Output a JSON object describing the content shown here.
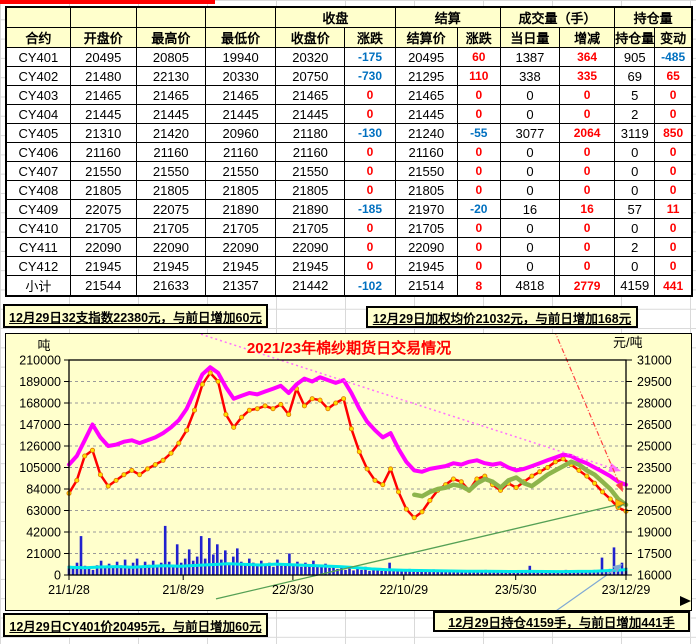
{
  "table": {
    "top_headers": [
      {
        "label": "",
        "span": 1
      },
      {
        "label": "",
        "span": 1
      },
      {
        "label": "",
        "span": 1
      },
      {
        "label": "",
        "span": 1
      },
      {
        "label": "收盘",
        "span": 2
      },
      {
        "label": "结算",
        "span": 2
      },
      {
        "label": "成交量（手）",
        "span": 2
      },
      {
        "label": "持仓量",
        "span": 2
      }
    ],
    "col_headers": [
      "合约",
      "开盘价",
      "最高价",
      "最低价",
      "收盘价",
      "涨跌",
      "结算价",
      "涨跌",
      "当日量",
      "增减",
      "持仓量",
      "变动"
    ],
    "change_cols": [
      5,
      7,
      9,
      11
    ],
    "rows": [
      [
        "CY401",
        20495,
        20805,
        19940,
        20320,
        -175,
        20495,
        60,
        1387,
        364,
        905,
        -485
      ],
      [
        "CY402",
        21480,
        22130,
        20330,
        20750,
        -730,
        21295,
        110,
        338,
        335,
        69,
        65
      ],
      [
        "CY403",
        21465,
        21465,
        21465,
        21465,
        0,
        21465,
        0,
        0,
        0,
        5,
        0
      ],
      [
        "CY404",
        21445,
        21445,
        21445,
        21445,
        0,
        21445,
        0,
        0,
        0,
        2,
        0
      ],
      [
        "CY405",
        21310,
        21420,
        20960,
        21180,
        -130,
        21240,
        -55,
        3077,
        2064,
        3119,
        850
      ],
      [
        "CY406",
        21160,
        21160,
        21160,
        21160,
        0,
        21160,
        0,
        0,
        0,
        0,
        0
      ],
      [
        "CY407",
        21550,
        21550,
        21550,
        21550,
        0,
        21550,
        0,
        0,
        0,
        0,
        0
      ],
      [
        "CY408",
        21805,
        21805,
        21805,
        21805,
        0,
        21805,
        0,
        0,
        0,
        0,
        0
      ],
      [
        "CY409",
        22075,
        22075,
        21890,
        21890,
        -185,
        21970,
        -20,
        16,
        16,
        57,
        11
      ],
      [
        "CY410",
        21705,
        21705,
        21705,
        21705,
        0,
        21705,
        0,
        0,
        0,
        0,
        0
      ],
      [
        "CY411",
        22090,
        22090,
        22090,
        22090,
        0,
        22090,
        0,
        0,
        0,
        2,
        0
      ],
      [
        "CY412",
        21945,
        21945,
        21945,
        21945,
        0,
        21945,
        0,
        0,
        0,
        0,
        0
      ],
      [
        "小计",
        21544,
        21633,
        21357,
        21442,
        -102,
        21514,
        8,
        4818,
        2779,
        4159,
        441
      ]
    ],
    "colors": {
      "positive": "#FF0000",
      "negative": "#0070C0",
      "header_bg": "#FFFFCC"
    }
  },
  "banners": {
    "index": "12月29日32支指数22380元，与前日增加60元",
    "weighted": "12月29日加权均价21032元，与前日增加168元",
    "cy401": "12月29日CY401价20495元，与前日增加60元",
    "position": "12月29日持仓4159手，与前日增加441手"
  },
  "chart_data": {
    "type": "line",
    "title": "2021/23年棉纱期货日交易情况",
    "title_color": "#FF0000",
    "background": "#FFFFCC",
    "grid": "dashed-horizontal",
    "left_axis": {
      "label": "吨",
      "min": 0,
      "max": 210000,
      "ticks": [
        210000,
        189000,
        168000,
        147000,
        126000,
        105000,
        84000,
        63000,
        42000,
        21000,
        0
      ]
    },
    "right_axis": {
      "label": "元/吨",
      "min": 16000,
      "max": 31000,
      "ticks": [
        31000,
        29500,
        28000,
        26500,
        25000,
        23500,
        22000,
        20500,
        19000,
        17500,
        16000
      ]
    },
    "x_ticks": {
      "labels": [
        "21/1/28",
        "21/8/29",
        "22/3/30",
        "22/10/29",
        "23/5/30",
        "23/12/29"
      ],
      "t": [
        0,
        0.205,
        0.402,
        0.601,
        0.802,
        1
      ]
    },
    "series": [
      {
        "id": "volume-bars",
        "type": "bar",
        "axis": "left",
        "color": "#2121CE",
        "t0": 0,
        "t1": 1,
        "values": [
          9000,
          6500,
          12000,
          38000,
          9000,
          7000,
          5000,
          9500,
          14000,
          7000,
          11000,
          8000,
          13000,
          9500,
          15000,
          8000,
          12000,
          16000,
          9000,
          13000,
          10000,
          14000,
          9000,
          12000,
          48000,
          13000,
          9000,
          30000,
          12000,
          16000,
          25000,
          14000,
          18000,
          38000,
          16000,
          36000,
          20000,
          30000,
          15000,
          24000,
          12000,
          18000,
          26000,
          13000,
          10000,
          16000,
          12000,
          9000,
          14000,
          10000,
          12000,
          8000,
          15000,
          9000,
          11000,
          21000,
          10000,
          13000,
          8000,
          12000,
          9000,
          14000,
          10000,
          8000,
          11000,
          7000,
          9000,
          6000,
          8000,
          5000,
          7000,
          4500,
          6000,
          5000,
          8000,
          4000,
          6500,
          5000,
          4000,
          6000,
          12000,
          5000,
          4000,
          5500,
          4500,
          6000,
          4000,
          5000,
          3500,
          4500,
          4000,
          5500,
          3500,
          4500,
          3000,
          5000,
          3500,
          4000,
          3000,
          4500,
          3500,
          3000,
          4000,
          3000,
          5000,
          3500,
          3000,
          4500,
          3000,
          4000,
          3500,
          3000,
          4500,
          3000,
          3500,
          9000,
          3500,
          4000,
          3000,
          4500,
          3500,
          3000,
          4000,
          3500,
          5000,
          3000,
          4000,
          3500,
          4500,
          3000,
          4000,
          5000,
          4500,
          17000,
          5000,
          6000,
          27000,
          6000,
          12000,
          7000
        ]
      },
      {
        "id": "cyan-volume-ma-line",
        "type": "line",
        "axis": "left",
        "color": "#00E8E8",
        "width": 3,
        "t0": 0,
        "t1": 1,
        "values": [
          7500,
          7000,
          7800,
          8200,
          7600,
          8400,
          9000,
          8600,
          9400,
          10200,
          11000,
          10400,
          9800,
          10600,
          10000,
          9400,
          8800,
          8200,
          7200,
          6000,
          5200,
          4700,
          4400,
          4100,
          3900,
          3700,
          3600,
          3500,
          3400,
          3500,
          3400,
          3300,
          3500,
          3700,
          4400,
          5200
        ]
      },
      {
        "id": "red-futures-price-line",
        "type": "line",
        "axis": "right",
        "color": "#FF0000",
        "width": 2.5,
        "marker": {
          "fill": "#FFE000",
          "stroke": "#E07000",
          "r": 2.1
        },
        "t0": 0,
        "t1": 1,
        "values": [
          21700,
          22600,
          24300,
          24700,
          23000,
          22200,
          22600,
          23000,
          23300,
          23000,
          23400,
          23700,
          24000,
          24500,
          25200,
          26100,
          27500,
          29300,
          30100,
          29500,
          27200,
          26300,
          27000,
          27500,
          27600,
          27800,
          27600,
          27900,
          27200,
          29000,
          27800,
          28300,
          28200,
          27600,
          28000,
          28300,
          26200,
          24600,
          23400,
          22600,
          22300,
          23400,
          21800,
          20600,
          20000,
          20400,
          21200,
          21900,
          22300,
          22700,
          22500,
          21900,
          22700,
          22900,
          22300,
          21900,
          22400,
          22100,
          22500,
          22900,
          23200,
          23500,
          23900,
          24100,
          23700,
          23300,
          22900,
          22400,
          21800,
          21300,
          20700,
          20450
        ]
      },
      {
        "id": "green-weighted-avg-line",
        "type": "line",
        "axis": "right",
        "color": "#8DB54C",
        "width": 4.5,
        "t0": 0.62,
        "t1": 1,
        "values": [
          21600,
          21500,
          21800,
          22000,
          22100,
          22300,
          22200,
          21900,
          22400,
          22700,
          22500,
          22100,
          22600,
          22800,
          22400,
          22200,
          22600,
          23000,
          23300,
          23600,
          23900,
          23700,
          23300,
          23000,
          22500,
          22000,
          21300,
          20900
        ]
      },
      {
        "id": "magenta-32s-index-line",
        "type": "line",
        "axis": "right",
        "color": "#FF00FF",
        "width": 4,
        "t0": 0,
        "t1": 1,
        "values": [
          23700,
          24300,
          25400,
          26500,
          25600,
          25000,
          25100,
          25300,
          25400,
          25200,
          25400,
          25600,
          25900,
          26300,
          26800,
          27600,
          28800,
          30000,
          30500,
          30100,
          29100,
          28300,
          28500,
          28700,
          28600,
          28800,
          29000,
          29200,
          28700,
          29300,
          29700,
          29500,
          29800,
          29600,
          29400,
          29600,
          28700,
          27600,
          26700,
          26100,
          25600,
          25900,
          24800,
          23900,
          23300,
          23200,
          23400,
          23500,
          23600,
          23800,
          23700,
          23900,
          24000,
          23800,
          23700,
          23800,
          23500,
          23300,
          23400,
          23600,
          23800,
          24000,
          24200,
          24400,
          24300,
          24000,
          23800,
          23500,
          23200,
          22900,
          22500,
          22300
        ]
      }
    ],
    "trendlines": [
      {
        "id": "pink-dotted-trendline",
        "color": "#FF70FF",
        "dash": "2,3",
        "width": 1.5,
        "t0": 0.237,
        "p0": 32800,
        "t1": 0.987,
        "p1": 23300
      },
      {
        "id": "red-dashed-trendline",
        "color": "#FF4040",
        "dash": "5,2,1,2",
        "width": 1.2,
        "t0": 0.871,
        "p0": 33100,
        "t1": 0.993,
        "p1": 21900
      },
      {
        "id": "green-rising-trendline",
        "color": "#55A055",
        "dash": "",
        "width": 1.3,
        "t0": 0.264,
        "p0": 14330,
        "t1": 0.998,
        "p1": 21020
      },
      {
        "id": "blue-rising-trendline",
        "color": "#7FA8D4",
        "dash": "",
        "width": 1.2,
        "t0": 0.874,
        "p0": 13490,
        "t1": 0.991,
        "p1": 16700
      }
    ],
    "annotations": [
      {
        "id": "yellow-end-arrow",
        "color": "#FFC000",
        "t": 0.985,
        "p": 21000
      }
    ]
  },
  "misc": {
    "red_topline_color": "#FF0000"
  }
}
